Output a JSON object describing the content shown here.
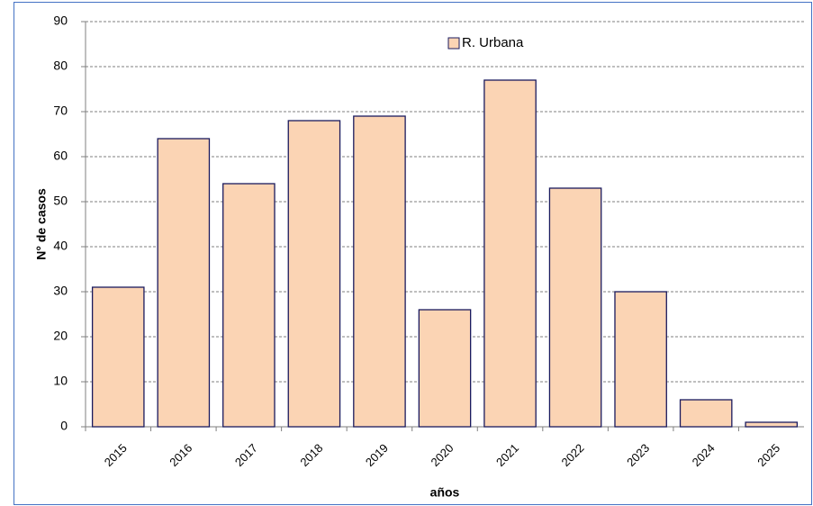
{
  "chart_data": {
    "type": "bar",
    "categories": [
      "2015",
      "2016",
      "2017",
      "2018",
      "2019",
      "2020",
      "2021",
      "2022",
      "2023",
      "2024",
      "2025"
    ],
    "series": [
      {
        "name": "R. Urbana",
        "color": "#fbd4b4",
        "values": [
          31,
          64,
          54,
          68,
          69,
          26,
          77,
          53,
          30,
          6,
          1
        ]
      }
    ],
    "x_label": "años",
    "y_label": "N° de casos",
    "ylim": [
      0,
      90
    ],
    "yticks": [
      0,
      10,
      20,
      30,
      40,
      50,
      60,
      70,
      80,
      90
    ],
    "grid": true
  }
}
